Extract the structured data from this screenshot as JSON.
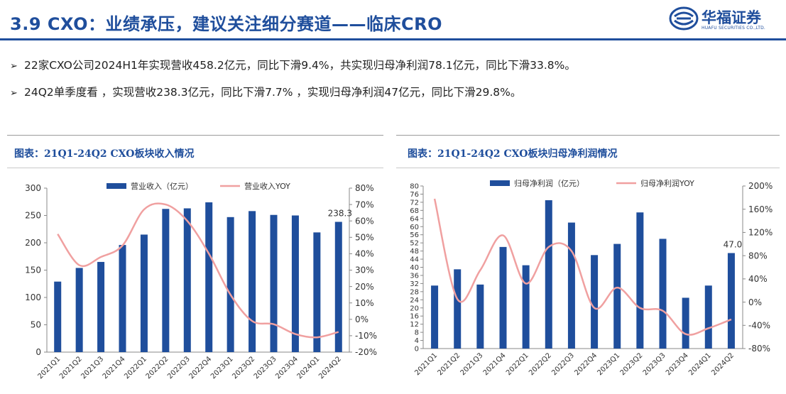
{
  "header": {
    "title": "3.9 CXO：业绩承压，建议关注细分赛道——临床CRO",
    "logo_cn": "华福证券",
    "logo_en": "HUAFU SECURITIES CO.,LTD.",
    "logo_icon": "company-logo-icon"
  },
  "bullets": [
    {
      "marker": "➢",
      "text": "22家CXO公司2024H1年实现营收458.2亿元，同比下滑9.4%，共实现归母净利润78.1亿元，同比下滑33.8%。"
    },
    {
      "marker": "➢",
      "text": "24Q2单季度看 ，实现营收238.3亿元，同比下滑7.7% ，实现归母净利润47亿元，同比下滑29.8%。"
    }
  ],
  "colors": {
    "bar": "#1f4e9c",
    "line": "#f0a0a0",
    "title": "#1f4e9c"
  },
  "chart_data": [
    {
      "type": "bar+line",
      "title": "图表：21Q1-24Q2 CXO板块收入情况",
      "categories": [
        "2021Q1",
        "2021Q2",
        "2021Q3",
        "2021Q4",
        "2022Q1",
        "2022Q2",
        "2022Q3",
        "2022Q4",
        "2023Q1",
        "2023Q2",
        "2023Q3",
        "2023Q4",
        "2024Q1",
        "2024Q2"
      ],
      "series": [
        {
          "name": "营业收入（亿元）",
          "kind": "bar",
          "axis": "left",
          "values": [
            129,
            154,
            165,
            196,
            215,
            262,
            263,
            274,
            247,
            258,
            251,
            250,
            219,
            238.3
          ]
        },
        {
          "name": "营业收入YOY",
          "kind": "line",
          "axis": "right",
          "unit": "%",
          "values": [
            52,
            33,
            38,
            45,
            67,
            70,
            60,
            40,
            15,
            -1,
            -3,
            -9,
            -11,
            -7.7
          ]
        }
      ],
      "left_axis": {
        "min": 0,
        "max": 300,
        "step": 50,
        "ticks": [
          "0",
          "50",
          "100",
          "150",
          "200",
          "250",
          "300"
        ]
      },
      "right_axis": {
        "min": -20,
        "max": 80,
        "step": 10,
        "ticks": [
          "-20%",
          "-10%",
          "0%",
          "10%",
          "20%",
          "30%",
          "40%",
          "50%",
          "60%",
          "70%",
          "80%"
        ]
      },
      "data_labels": [
        {
          "index": 13,
          "text": "238.3"
        }
      ],
      "legend": "top-center"
    },
    {
      "type": "bar+line",
      "title": "图表：21Q1-24Q2 CXO板块归母净利润情况",
      "categories": [
        "2021Q1",
        "2021Q2",
        "2021Q3",
        "2021Q4",
        "2022Q1",
        "2022Q2",
        "2022Q3",
        "2022Q4",
        "2023Q1",
        "2023Q2",
        "2023Q3",
        "2023Q4",
        "2024Q1",
        "2024Q2"
      ],
      "series": [
        {
          "name": "归母净利润（亿元）",
          "kind": "bar",
          "axis": "left",
          "values": [
            31,
            39,
            31.5,
            50,
            41,
            73,
            62,
            46,
            51.5,
            67,
            54,
            25,
            31,
            47
          ]
        },
        {
          "name": "归母净利润YOY",
          "kind": "line",
          "axis": "right",
          "unit": "%",
          "values": [
            178,
            5,
            55,
            115,
            32,
            95,
            88,
            -10,
            25,
            -10,
            -15,
            -55,
            -45,
            -29.8
          ]
        }
      ],
      "left_axis": {
        "min": 0,
        "max": 80,
        "step": 4,
        "ticks": [
          "0",
          "4",
          "8",
          "12",
          "16",
          "20",
          "24",
          "28",
          "32",
          "36",
          "40",
          "44",
          "48",
          "52",
          "56",
          "60",
          "64",
          "68",
          "72",
          "76",
          "80"
        ]
      },
      "right_axis": {
        "min": -80,
        "max": 200,
        "step": 40,
        "ticks": [
          "-80%",
          "-40%",
          "0%",
          "40%",
          "80%",
          "120%",
          "160%",
          "200%"
        ]
      },
      "data_labels": [
        {
          "index": 13,
          "text": "47.0"
        }
      ],
      "legend": "top-center"
    }
  ]
}
